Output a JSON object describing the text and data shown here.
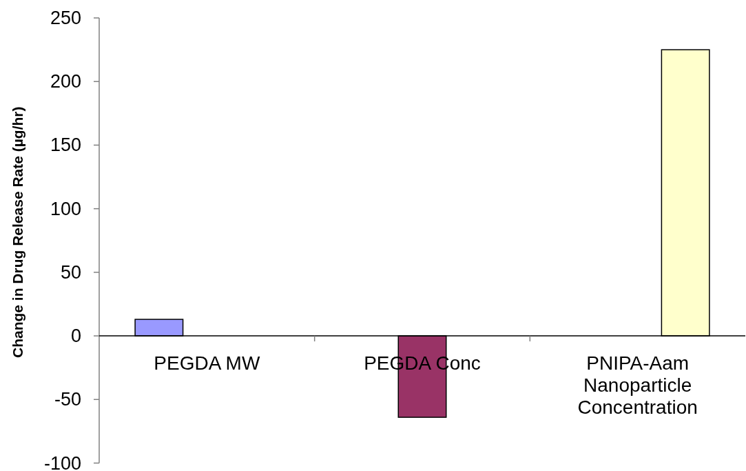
{
  "chart_data": {
    "type": "bar",
    "ylabel": "Change in Drug Release Rate (µg/hr)",
    "categories": [
      "PEGDA MW",
      "PEGDA Conc",
      "PNIPA-Aam Nanoparticle Concentration"
    ],
    "series": [
      {
        "color": "#9999ff",
        "values": [
          13,
          null,
          null
        ]
      },
      {
        "color": "#993366",
        "values": [
          null,
          -64,
          null
        ]
      },
      {
        "color": "#ffffcc",
        "values": [
          null,
          null,
          225
        ]
      }
    ],
    "ylim": [
      -100,
      250
    ],
    "yticks": [
      -100,
      -50,
      0,
      50,
      100,
      150,
      200,
      250
    ]
  }
}
